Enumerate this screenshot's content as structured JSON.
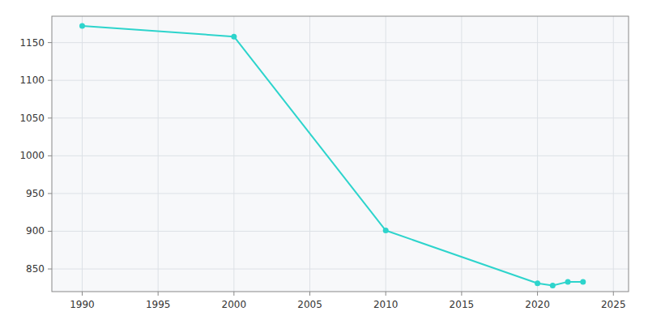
{
  "chart_data": {
    "type": "line",
    "x": [
      1990,
      2000,
      2010,
      2020,
      2021,
      2022,
      2023
    ],
    "values": [
      1172,
      1158,
      901,
      831,
      828,
      833,
      833
    ],
    "color": "#2DD4CC",
    "marker": "circle",
    "xlim": [
      1988,
      2026
    ],
    "ylim": [
      820,
      1185
    ],
    "xticks": [
      1990,
      1995,
      2000,
      2005,
      2010,
      2015,
      2020,
      2025
    ],
    "yticks": [
      850,
      900,
      950,
      1000,
      1050,
      1100,
      1150
    ],
    "grid": true
  }
}
